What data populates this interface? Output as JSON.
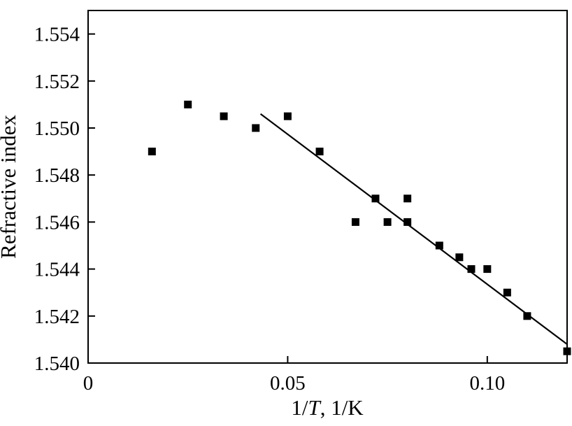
{
  "chart_data": {
    "type": "scatter",
    "title": "",
    "xlabel": {
      "prefix": "1/",
      "var": "T",
      "suffix": ", 1/K"
    },
    "ylabel": "Refractive index",
    "xlim": [
      0,
      0.12
    ],
    "ylim": [
      1.54,
      1.555
    ],
    "grid": false,
    "legend": "none",
    "x_ticks": [
      {
        "value": 0,
        "label": "0"
      },
      {
        "value": 0.05,
        "label": "0.05"
      },
      {
        "value": 0.1,
        "label": "0.10"
      }
    ],
    "y_ticks": [
      {
        "value": 1.54,
        "label": "1.540"
      },
      {
        "value": 1.542,
        "label": "1.542"
      },
      {
        "value": 1.544,
        "label": "1.544"
      },
      {
        "value": 1.546,
        "label": "1.546"
      },
      {
        "value": 1.548,
        "label": "1.548"
      },
      {
        "value": 1.55,
        "label": "1.550"
      },
      {
        "value": 1.552,
        "label": "1.552"
      },
      {
        "value": 1.554,
        "label": "1.554"
      }
    ],
    "series": [
      {
        "marker": "square",
        "color": "#000000",
        "points": [
          {
            "x": 0.016,
            "y": 1.549
          },
          {
            "x": 0.025,
            "y": 1.551
          },
          {
            "x": 0.034,
            "y": 1.5505
          },
          {
            "x": 0.042,
            "y": 1.55
          },
          {
            "x": 0.05,
            "y": 1.5505
          },
          {
            "x": 0.058,
            "y": 1.549
          },
          {
            "x": 0.067,
            "y": 1.546
          },
          {
            "x": 0.072,
            "y": 1.547
          },
          {
            "x": 0.075,
            "y": 1.546
          },
          {
            "x": 0.08,
            "y": 1.547
          },
          {
            "x": 0.08,
            "y": 1.546
          },
          {
            "x": 0.088,
            "y": 1.545
          },
          {
            "x": 0.093,
            "y": 1.5445
          },
          {
            "x": 0.096,
            "y": 1.544
          },
          {
            "x": 0.1,
            "y": 1.544
          },
          {
            "x": 0.105,
            "y": 1.543
          },
          {
            "x": 0.11,
            "y": 1.542
          },
          {
            "x": 0.12,
            "y": 1.5405
          }
        ]
      }
    ],
    "fit_line": {
      "color": "#000000",
      "points": [
        {
          "x": 0.0432,
          "y": 1.5506
        },
        {
          "x": 0.12,
          "y": 1.5408
        }
      ]
    }
  }
}
